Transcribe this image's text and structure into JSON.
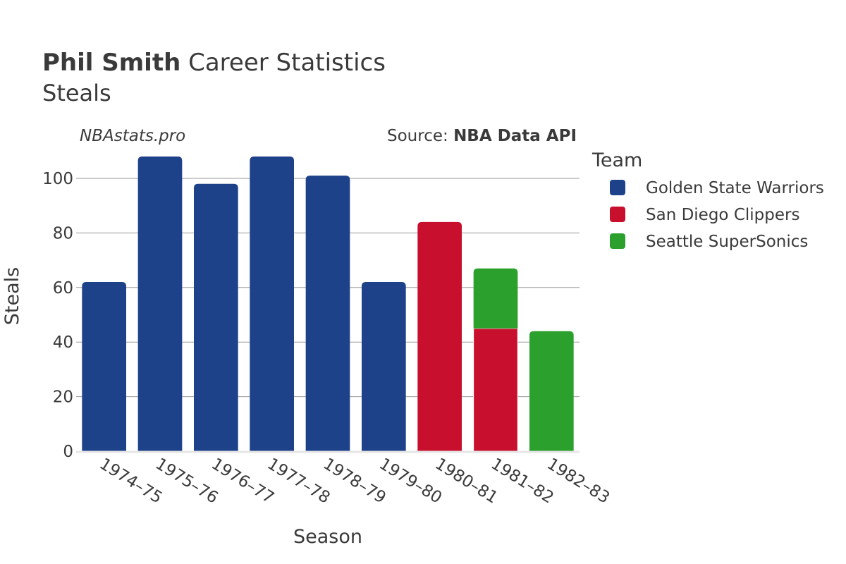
{
  "chart_data": {
    "type": "bar",
    "stacked": true,
    "title": {
      "bold": "Phil Smith",
      "rest": " Career Statistics"
    },
    "subtitle": "Steals",
    "watermark": "NBAstats.pro",
    "source": {
      "prefix": "Source: ",
      "name": "NBA Data API"
    },
    "xlabel": "Season",
    "ylabel": "Steals",
    "ylim": [
      0,
      110
    ],
    "yticks": [
      0,
      20,
      40,
      60,
      80,
      100
    ],
    "categories": [
      "1974–75",
      "1975–76",
      "1976–77",
      "1977–78",
      "1978–79",
      "1979–80",
      "1980–81",
      "1981–82",
      "1982–83"
    ],
    "legend": {
      "title": "Team",
      "position": "right"
    },
    "series": [
      {
        "name": "Golden State Warriors",
        "color": "#1d428a",
        "values": [
          62,
          108,
          98,
          108,
          101,
          62,
          0,
          0,
          0
        ]
      },
      {
        "name": "San Diego Clippers",
        "color": "#c8102e",
        "values": [
          0,
          0,
          0,
          0,
          0,
          0,
          84,
          45,
          0
        ]
      },
      {
        "name": "Seattle SuperSonics",
        "color": "#2ca02c",
        "values": [
          0,
          0,
          0,
          0,
          0,
          0,
          0,
          22,
          44
        ]
      }
    ]
  }
}
